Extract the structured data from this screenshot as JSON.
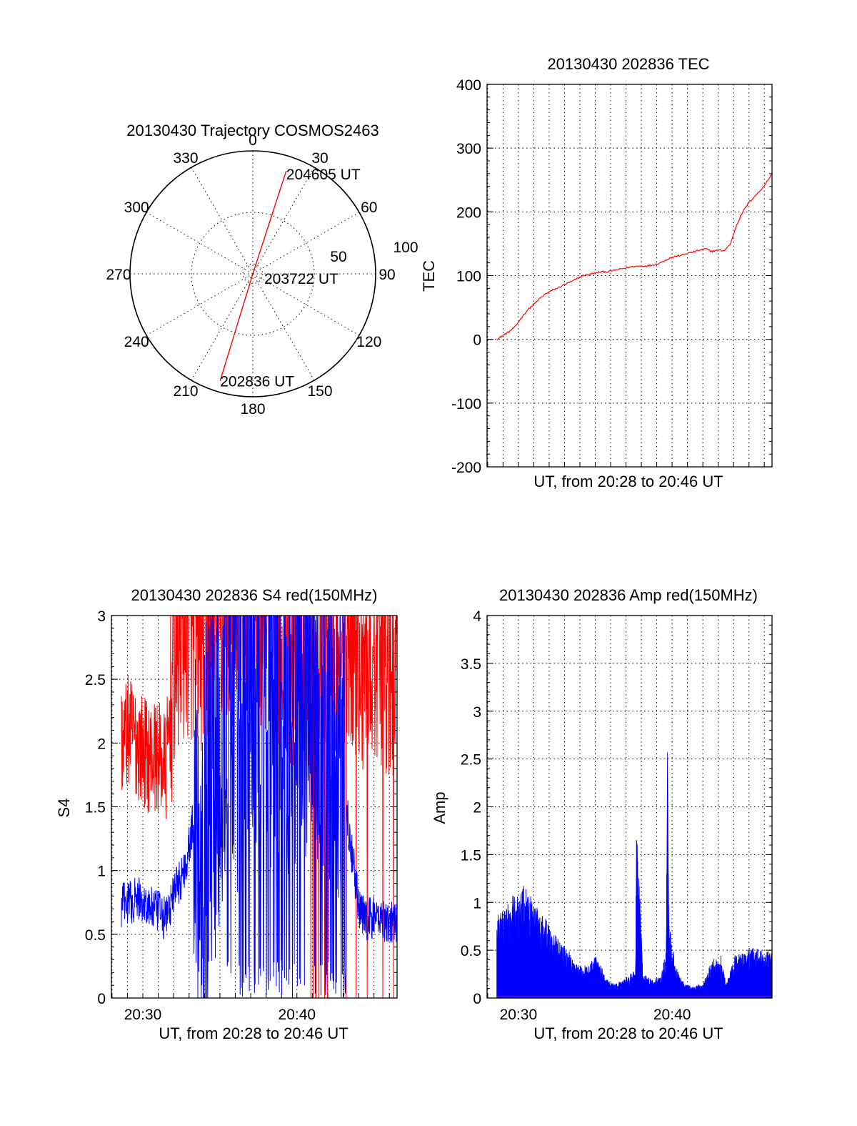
{
  "chart_data": [
    {
      "type": "polar",
      "title": "20130430 Trajectory COSMOS2463",
      "angle_labels": [
        "0",
        "30",
        "60",
        "90",
        "120",
        "150",
        "180",
        "210",
        "240",
        "270",
        "300",
        "330"
      ],
      "radial_labels": [
        "50",
        "100"
      ],
      "rlim": [
        0,
        100
      ],
      "trajectory": {
        "color": "#ff0000",
        "points": [
          {
            "az": 197,
            "r": 91,
            "label": "202836 UT"
          },
          {
            "az": 0,
            "r": 0,
            "label": "203722 UT"
          },
          {
            "az": 18,
            "r": 88,
            "label": "204605 UT"
          }
        ]
      }
    },
    {
      "type": "line",
      "title": "20130430 202836 TEC",
      "xlabel": "UT, from 20:28 to 20:46 UT",
      "ylabel": "TEC",
      "xlim": [
        20.466,
        20.775
      ],
      "ylim": [
        -200,
        400
      ],
      "yticks": [
        "-200",
        "-100",
        "0",
        "100",
        "200",
        "300",
        "400"
      ],
      "grid": true,
      "series": [
        {
          "color": "#ff0000",
          "x": [
            20.4767,
            20.4833,
            20.49,
            20.4967,
            20.5033,
            20.51,
            20.5167,
            20.5233,
            20.53,
            20.5367,
            20.5433,
            20.55,
            20.5567,
            20.5633,
            20.57,
            20.5767,
            20.5833,
            20.59,
            20.5967,
            20.6033,
            20.61,
            20.6167,
            20.6233,
            20.63,
            20.6367,
            20.6433,
            20.65,
            20.6567,
            20.6633,
            20.67,
            20.6767,
            20.6833,
            20.69,
            20.6967,
            20.7033,
            20.71,
            20.7167,
            20.7233,
            20.73,
            20.7367,
            20.7433,
            20.75,
            20.7567,
            20.7633,
            20.77,
            20.7748
          ],
          "y": [
            0,
            6,
            12,
            20,
            34,
            46,
            55,
            64,
            72,
            77,
            81,
            86,
            90,
            95,
            100,
            102,
            104,
            106,
            106,
            108,
            110,
            112,
            114,
            115,
            115,
            116,
            118,
            122,
            127,
            130,
            132,
            135,
            137,
            140,
            142,
            138,
            140,
            139,
            150,
            180,
            200,
            215,
            225,
            235,
            248,
            260
          ]
        }
      ]
    },
    {
      "type": "line",
      "title": "20130430 202836 S4 red(150MHz)",
      "xlabel": "UT, from 20:28 to 20:46 UT",
      "ylabel": "S4",
      "xlim": [
        20.466,
        20.775
      ],
      "ylim": [
        0,
        3
      ],
      "xticks": [
        {
          "value": 20.5,
          "label": "20:30"
        },
        {
          "value": 20.6667,
          "label": "20:40"
        }
      ],
      "yticks": [
        "0",
        "0.5",
        "1",
        "1.5",
        "2",
        "2.5",
        "3"
      ],
      "grid": true,
      "series": [
        {
          "color": "#ff0000",
          "kind": "noisy-band",
          "x": [
            20.475,
            20.485,
            20.495,
            20.505,
            20.515,
            20.525,
            20.535,
            20.545,
            20.555,
            20.565,
            20.575,
            20.585,
            20.595,
            20.605,
            20.615,
            20.625,
            20.635,
            20.645,
            20.655,
            20.665,
            20.675,
            20.685,
            20.695,
            20.705,
            20.715,
            20.725,
            20.735,
            20.745,
            20.755,
            20.765,
            20.775
          ],
          "y": [
            2.0,
            2.1,
            2.0,
            1.9,
            1.9,
            1.8,
            2.7,
            2.9,
            2.9,
            2.8,
            2.9,
            2.9,
            3.0,
            3.0,
            3.0,
            3.0,
            3.0,
            2.9,
            2.8,
            2.6,
            2.7,
            2.7,
            2.9,
            2.8,
            2.8,
            2.9,
            2.7,
            2.6,
            2.8,
            2.5,
            2.5
          ]
        },
        {
          "color": "#0000ff",
          "kind": "noisy-band",
          "x": [
            20.475,
            20.485,
            20.495,
            20.505,
            20.515,
            20.525,
            20.535,
            20.545,
            20.555,
            20.565,
            20.575,
            20.585,
            20.595,
            20.605,
            20.615,
            20.625,
            20.635,
            20.645,
            20.655,
            20.665,
            20.675,
            20.685,
            20.695,
            20.705,
            20.715,
            20.725,
            20.735,
            20.745,
            20.755,
            20.765,
            20.775
          ],
          "y": [
            0.72,
            0.75,
            0.78,
            0.72,
            0.68,
            0.62,
            0.85,
            1.0,
            1.4,
            1.2,
            1.8,
            2.0,
            2.4,
            2.4,
            2.6,
            2.8,
            2.6,
            2.6,
            2.4,
            2.6,
            2.7,
            2.7,
            2.5,
            2.2,
            1.8,
            1.2,
            0.65,
            0.62,
            0.64,
            0.6,
            0.6
          ]
        }
      ]
    },
    {
      "type": "line",
      "title": "20130430 202836 Amp red(150MHz)",
      "xlabel": "UT, from 20:28 to 20:46 UT",
      "ylabel": "Amp",
      "xlim": [
        20.466,
        20.775
      ],
      "ylim": [
        0,
        4
      ],
      "xticks": [
        {
          "value": 20.5,
          "label": "20:30"
        },
        {
          "value": 20.6667,
          "label": "20:40"
        }
      ],
      "yticks": [
        "0",
        "0.5",
        "1",
        "1.5",
        "2",
        "2.5",
        "3",
        "3.5",
        "4"
      ],
      "grid": true,
      "series": [
        {
          "color": "#0000ff",
          "kind": "filled-envelope",
          "x": [
            20.4767,
            20.485,
            20.495,
            20.505,
            20.515,
            20.525,
            20.535,
            20.545,
            20.555,
            20.565,
            20.575,
            20.585,
            20.595,
            20.605,
            20.615,
            20.6267,
            20.6283,
            20.635,
            20.645,
            20.655,
            20.66,
            20.6617,
            20.6633,
            20.67,
            20.68,
            20.69,
            20.7,
            20.71,
            20.72,
            20.725,
            20.735,
            20.745,
            20.755,
            20.765,
            20.775
          ],
          "y": [
            0.9,
            0.95,
            1.1,
            1.2,
            1.05,
            0.9,
            0.75,
            0.6,
            0.5,
            0.35,
            0.35,
            0.45,
            0.2,
            0.15,
            0.2,
            0.3,
            2.0,
            0.25,
            0.2,
            0.25,
            0.5,
            2.75,
            0.8,
            0.35,
            0.15,
            0.12,
            0.15,
            0.4,
            0.45,
            0.15,
            0.45,
            0.5,
            0.55,
            0.5,
            0.5
          ]
        },
        {
          "color": "#ff0000",
          "kind": "baseline",
          "x": [
            20.4767,
            20.775
          ],
          "y": [
            0.02,
            0.02
          ]
        }
      ]
    }
  ]
}
